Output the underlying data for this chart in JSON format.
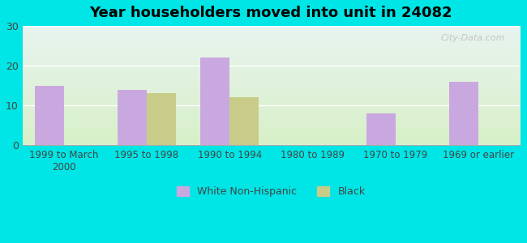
{
  "title": "Year householders moved into unit in 24082",
  "categories": [
    "1999 to March\n2000",
    "1995 to 1998",
    "1990 to 1994",
    "1980 to 1989",
    "1970 to 1979",
    "1969 or earlier"
  ],
  "white_values": [
    15,
    14,
    22,
    0,
    8,
    16
  ],
  "black_values": [
    0,
    13,
    12,
    0,
    0,
    0
  ],
  "white_color": "#c9a8e0",
  "black_color": "#c8cc88",
  "ylim": [
    0,
    30
  ],
  "yticks": [
    0,
    10,
    20,
    30
  ],
  "background_outer": "#00e5e5",
  "background_inner_top": "#e8f4f0",
  "background_inner_bottom": "#d8f0c8",
  "bar_width": 0.35,
  "legend_labels": [
    "White Non-Hispanic",
    "Black"
  ],
  "watermark": "City-Data.com"
}
